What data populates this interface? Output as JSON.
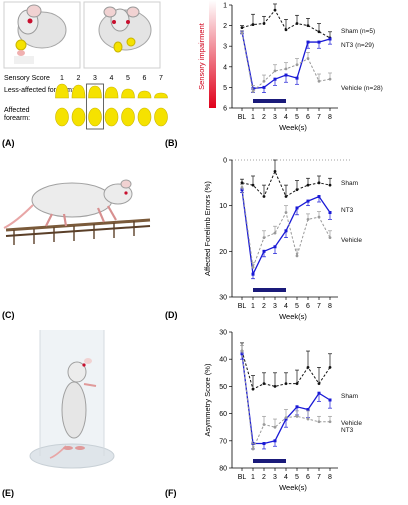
{
  "panels": {
    "A": {
      "label": "(A)",
      "scale_label": "Sensory Score",
      "scores": [
        "1",
        "2",
        "3",
        "4",
        "5",
        "6",
        "7"
      ],
      "less_affected_label": "Less-affected forearm:",
      "affected_label": "Affected forearm:",
      "highlighted_score": 3
    },
    "C": {
      "label": "(C)"
    },
    "E": {
      "label": "(E)"
    }
  },
  "colors": {
    "sham": "#111111",
    "nt3": "#1a1ad6",
    "vehicle": "#9a9a9a",
    "treatment_bar": "#1a1a7a",
    "yellow": "#f5e200"
  },
  "chart_data": [
    {
      "panel": "(B)",
      "type": "line",
      "title": "",
      "xlabel": "Week(s)",
      "ylabel": "",
      "side_label": "Sensory impairment",
      "categories": [
        "BL",
        "1",
        "2",
        "3",
        "4",
        "5",
        "6",
        "7",
        "8"
      ],
      "ylim": [
        1,
        6
      ],
      "y_inverted": true,
      "yticks": [
        1,
        2,
        3,
        4,
        5,
        6
      ],
      "series": [
        {
          "name": "Sham (n=5)",
          "style": "dashed",
          "values": [
            2.1,
            1.95,
            1.9,
            1.25,
            2.2,
            1.9,
            2.0,
            2.3,
            2.6
          ],
          "err": [
            0.1,
            0.5,
            0.35,
            0.3,
            0.5,
            0.4,
            0.35,
            0.4,
            0.3
          ]
        },
        {
          "name": "NT3 (n=29)",
          "style": "solid",
          "values": [
            2.3,
            5.05,
            5.0,
            4.6,
            4.4,
            4.55,
            2.8,
            2.8,
            2.65
          ],
          "err": [
            0.1,
            0.2,
            0.25,
            0.3,
            0.35,
            0.3,
            0.3,
            0.3,
            0.25
          ]
        },
        {
          "name": "Vehicle (n=28)",
          "style": "dashed",
          "values": [
            2.35,
            5.2,
            4.7,
            4.2,
            4.1,
            3.9,
            3.6,
            4.7,
            4.6
          ],
          "err": [
            0.1,
            0.3,
            0.3,
            0.3,
            0.3,
            0.3,
            0.3,
            0.35,
            0.3
          ]
        }
      ],
      "treatment_weeks": [
        1,
        4
      ]
    },
    {
      "panel": "(D)",
      "type": "line",
      "title": "",
      "xlabel": "Week(s)",
      "ylabel": "Affected Forelimb Errors (%)",
      "categories": [
        "BL",
        "1",
        "2",
        "3",
        "4",
        "5",
        "6",
        "7",
        "8"
      ],
      "ylim": [
        0,
        30
      ],
      "y_inverted": true,
      "yticks": [
        0,
        10,
        20,
        30
      ],
      "series": [
        {
          "name": "Sham",
          "style": "dashed",
          "values": [
            5.0,
            5.5,
            8.0,
            2.5,
            8.0,
            6.5,
            5.5,
            5.0,
            5.5
          ],
          "err": [
            0.8,
            2.0,
            2.5,
            2.5,
            2.5,
            2.0,
            1.5,
            1.5,
            1.5
          ]
        },
        {
          "name": "NT3",
          "style": "solid",
          "values": [
            6.5,
            25.0,
            20.0,
            19.0,
            15.5,
            10.5,
            9.0,
            8.0,
            11.5
          ],
          "err": [
            0.6,
            1.0,
            1.2,
            1.5,
            1.5,
            1.5,
            1.0,
            1.2,
            1.5
          ]
        },
        {
          "name": "Vehicle",
          "style": "dashed",
          "values": [
            6.0,
            23.5,
            17.0,
            16.0,
            11.5,
            21.0,
            13.0,
            12.5,
            17.0
          ],
          "err": [
            0.6,
            1.0,
            1.5,
            1.5,
            1.5,
            1.5,
            1.2,
            1.2,
            1.5
          ]
        }
      ],
      "treatment_weeks": [
        1,
        4
      ]
    },
    {
      "panel": "(F)",
      "type": "line",
      "title": "",
      "xlabel": "Week(s)",
      "ylabel": "Asymmetry Score (%)",
      "categories": [
        "BL",
        "1",
        "2",
        "3",
        "4",
        "5",
        "6",
        "7",
        "8"
      ],
      "ylim": [
        30,
        80
      ],
      "y_inverted": true,
      "yticks": [
        30,
        40,
        50,
        60,
        70,
        80
      ],
      "series": [
        {
          "name": "Sham",
          "style": "dashed",
          "values": [
            37,
            51,
            49,
            50,
            49,
            49,
            43,
            49,
            43
          ],
          "err": [
            3,
            5,
            4,
            5,
            4,
            5,
            6,
            6,
            5
          ]
        },
        {
          "name": "NT3",
          "style": "solid",
          "values": [
            38,
            71,
            71,
            70,
            62,
            57.5,
            58.5,
            52.5,
            55
          ],
          "err": [
            2,
            2,
            2,
            2,
            3,
            3,
            3,
            3,
            3
          ]
        },
        {
          "name": "Vehicle",
          "style": "dashed",
          "values": [
            37,
            73,
            64,
            65,
            61.5,
            61,
            62,
            63,
            63
          ],
          "err": [
            2,
            2,
            3,
            3,
            3,
            2,
            3,
            2,
            2
          ]
        }
      ],
      "treatment_weeks": [
        1,
        4
      ]
    }
  ]
}
